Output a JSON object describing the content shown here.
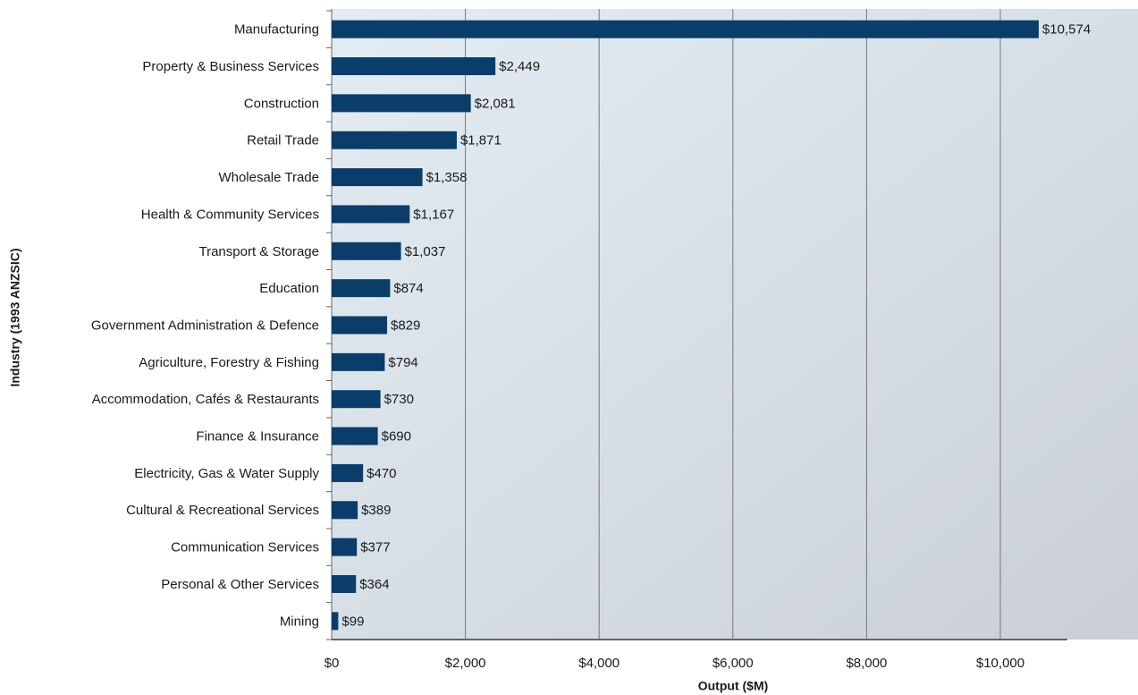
{
  "chart_data": {
    "type": "bar",
    "orientation": "horizontal",
    "x_label": "Output ($M)",
    "y_label": "Industry (1993 ANZSIC)",
    "categories": [
      "Manufacturing",
      "Property & Business Services",
      "Construction",
      "Retail Trade",
      "Wholesale Trade",
      "Health & Community Services",
      "Transport & Storage",
      "Education",
      "Government Administration & Defence",
      "Agriculture, Forestry & Fishing",
      "Accommodation, Cafés & Restaurants",
      "Finance & Insurance",
      "Electricity, Gas & Water Supply",
      "Cultural & Recreational Services",
      "Communication Services",
      "Personal & Other Services",
      "Mining"
    ],
    "values": [
      10574,
      2449,
      2081,
      1871,
      1358,
      1167,
      1037,
      874,
      829,
      794,
      730,
      690,
      470,
      389,
      377,
      364,
      99
    ],
    "value_labels": [
      "$10,574",
      "$2,449",
      "$2,081",
      "$1,871",
      "$1,358",
      "$1,167",
      "$1,037",
      "$874",
      "$829",
      "$794",
      "$730",
      "$690",
      "$470",
      "$389",
      "$377",
      "$364",
      "$99"
    ],
    "color": "#0b3d6b",
    "xlim": [
      0,
      12000
    ],
    "xticks": [
      {
        "value": 0,
        "label": "$0"
      },
      {
        "value": 2000,
        "label": "$2,000"
      },
      {
        "value": 4000,
        "label": "$4,000"
      },
      {
        "value": 6000,
        "label": "$6,000"
      },
      {
        "value": 8000,
        "label": "$8,000"
      },
      {
        "value": 10000,
        "label": "$10,000"
      }
    ],
    "grid": true
  }
}
